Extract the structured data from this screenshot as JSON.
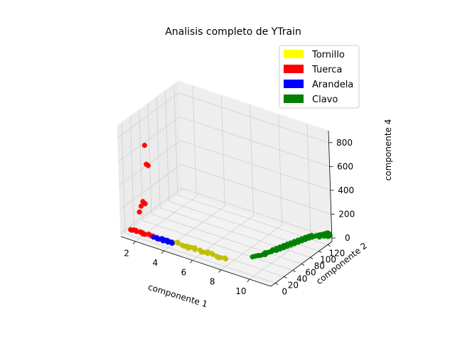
{
  "chart_data": {
    "type": "scatter",
    "projection": "3d",
    "title": "Analisis completo de YTrain",
    "xlabel": "componente 1",
    "ylabel": "componente 2",
    "zlabel": "componente 4",
    "xlim": [
      1,
      11.5
    ],
    "ylim": [
      -10,
      130
    ],
    "zlim": [
      -30,
      900
    ],
    "xticks": [
      2,
      4,
      6,
      8,
      10
    ],
    "yticks": [
      0,
      20,
      40,
      60,
      80,
      100,
      120
    ],
    "zticks": [
      0,
      200,
      400,
      600,
      800
    ],
    "grid": true,
    "legend_position": "top-right",
    "series": [
      {
        "name": "Tornillo",
        "color": "#ffff00",
        "marker_color": "#bfbf00",
        "points": [
          [
            4.2,
            6,
            5
          ],
          [
            4.5,
            7,
            8
          ],
          [
            4.8,
            6,
            6
          ],
          [
            5.1,
            8,
            4
          ],
          [
            5.4,
            7,
            9
          ],
          [
            5.7,
            6,
            5
          ],
          [
            6.0,
            8,
            7
          ],
          [
            6.3,
            7,
            4
          ],
          [
            6.6,
            6,
            8
          ],
          [
            6.9,
            8,
            6
          ],
          [
            7.2,
            7,
            5
          ],
          [
            7.5,
            6,
            9
          ],
          [
            7.8,
            8,
            4
          ],
          [
            4.4,
            9,
            6
          ],
          [
            5.0,
            5,
            7
          ],
          [
            5.6,
            9,
            8
          ],
          [
            6.2,
            5,
            5
          ],
          [
            6.8,
            9,
            7
          ],
          [
            7.4,
            5,
            6
          ],
          [
            7.7,
            9,
            5
          ],
          [
            5.3,
            4,
            6
          ],
          [
            6.5,
            10,
            5
          ]
        ]
      },
      {
        "name": "Tuerca",
        "color": "#ff0000",
        "marker_color": "#ff0000",
        "points": [
          [
            1.3,
            3,
            5
          ],
          [
            1.5,
            4,
            8
          ],
          [
            1.7,
            3,
            6
          ],
          [
            1.9,
            5,
            4
          ],
          [
            2.1,
            4,
            7
          ],
          [
            2.3,
            3,
            5
          ],
          [
            2.5,
            5,
            9
          ],
          [
            2.7,
            4,
            6
          ],
          [
            2.9,
            3,
            8
          ],
          [
            1.6,
            5,
            5
          ],
          [
            2.2,
            2,
            6
          ],
          [
            2.8,
            5,
            4
          ],
          [
            1.4,
            2,
            7
          ],
          [
            2.0,
            3,
            10
          ],
          [
            1.8,
            8,
            160
          ],
          [
            1.9,
            9,
            210
          ],
          [
            2.0,
            10,
            250
          ],
          [
            2.1,
            12,
            230
          ],
          [
            2.3,
            15,
            550
          ],
          [
            2.2,
            14,
            560
          ],
          [
            2.0,
            18,
            700
          ]
        ]
      },
      {
        "name": "Arandela",
        "color": "#0000ff",
        "marker_color": "#0000ff",
        "points": [
          [
            2.9,
            3,
            5
          ],
          [
            3.1,
            4,
            7
          ],
          [
            3.3,
            3,
            5
          ],
          [
            3.5,
            5,
            6
          ],
          [
            3.7,
            4,
            8
          ],
          [
            3.9,
            3,
            4
          ],
          [
            4.1,
            5,
            6
          ],
          [
            3.2,
            2,
            6
          ],
          [
            3.6,
            2,
            5
          ],
          [
            4.0,
            4,
            7
          ],
          [
            3.4,
            6,
            5
          ],
          [
            3.8,
            5,
            9
          ],
          [
            4.2,
            3,
            6
          ]
        ]
      },
      {
        "name": "Clavo",
        "color": "#008000",
        "marker_color": "#008000",
        "points": [
          [
            9.0,
            30,
            10
          ],
          [
            9.1,
            33,
            12
          ],
          [
            9.2,
            36,
            14
          ],
          [
            9.3,
            38,
            12
          ],
          [
            9.4,
            41,
            16
          ],
          [
            9.5,
            43,
            14
          ],
          [
            9.4,
            46,
            18
          ],
          [
            9.5,
            49,
            16
          ],
          [
            9.6,
            51,
            20
          ],
          [
            9.6,
            54,
            15
          ],
          [
            9.7,
            57,
            22
          ],
          [
            9.8,
            59,
            18
          ],
          [
            9.7,
            62,
            24
          ],
          [
            9.9,
            64,
            20
          ],
          [
            9.8,
            67,
            26
          ],
          [
            10.0,
            69,
            22
          ],
          [
            9.9,
            72,
            28
          ],
          [
            10.1,
            74,
            24
          ],
          [
            10.0,
            77,
            30
          ],
          [
            10.2,
            79,
            26
          ],
          [
            10.1,
            82,
            32
          ],
          [
            10.3,
            84,
            28
          ],
          [
            10.2,
            87,
            34
          ],
          [
            10.4,
            89,
            30
          ],
          [
            10.3,
            92,
            36
          ],
          [
            10.5,
            94,
            32
          ],
          [
            10.4,
            97,
            38
          ],
          [
            10.6,
            99,
            34
          ],
          [
            10.5,
            102,
            40
          ],
          [
            10.7,
            104,
            36
          ],
          [
            10.6,
            106,
            42
          ],
          [
            10.8,
            108,
            38
          ],
          [
            10.7,
            110,
            44
          ],
          [
            10.9,
            112,
            40
          ],
          [
            11.0,
            114,
            45
          ],
          [
            11.1,
            116,
            48
          ],
          [
            11.2,
            118,
            50
          ],
          [
            11.3,
            120,
            52
          ],
          [
            11.3,
            122,
            50
          ],
          [
            11.4,
            124,
            55
          ],
          [
            9.5,
            60,
            10
          ],
          [
            9.8,
            75,
            12
          ],
          [
            10.1,
            90,
            15
          ],
          [
            10.4,
            105,
            18
          ],
          [
            11.0,
            118,
            20
          ],
          [
            11.2,
            122,
            25
          ],
          [
            11.3,
            123,
            30
          ],
          [
            11.4,
            125,
            22
          ],
          [
            11.4,
            126,
            28
          ],
          [
            11.5,
            124,
            35
          ],
          [
            11.5,
            126,
            32
          ],
          [
            11.4,
            127,
            40
          ]
        ]
      }
    ]
  }
}
